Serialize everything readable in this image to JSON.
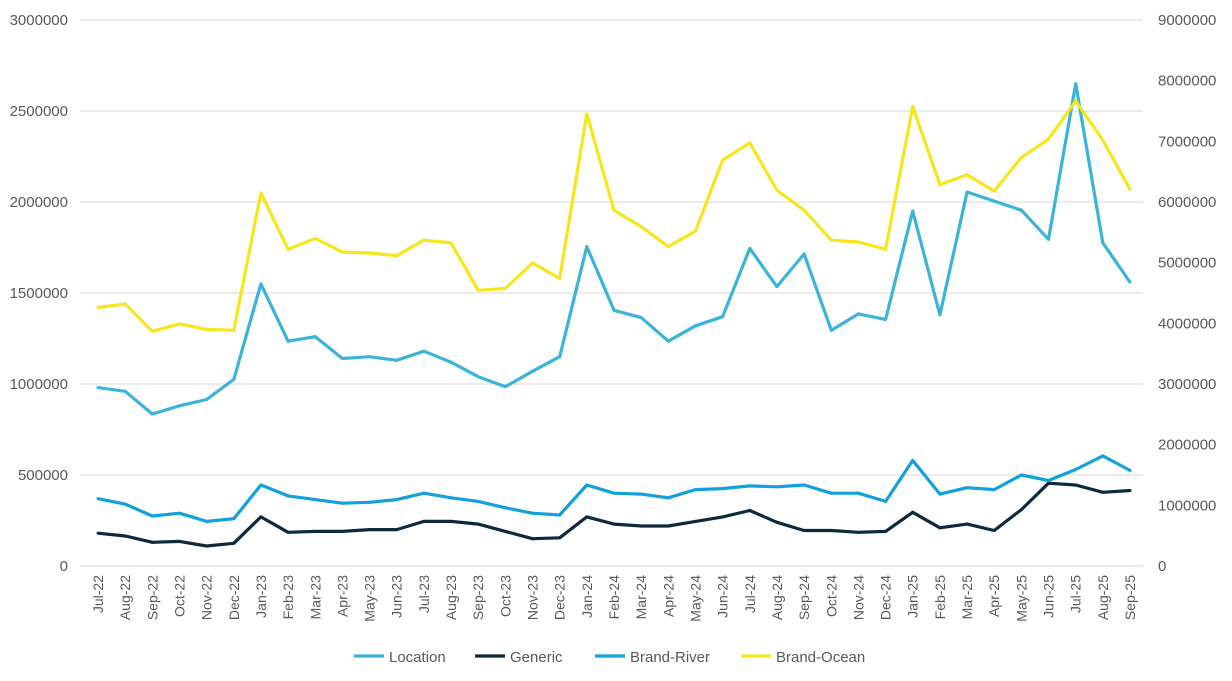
{
  "chart_data": {
    "type": "line",
    "title": "",
    "xlabel": "",
    "ylabel": "",
    "y2label": "",
    "ylim": [
      0,
      3000000
    ],
    "yticks": [
      "0",
      "500000",
      "1000000",
      "1500000",
      "2000000",
      "2500000",
      "3000000"
    ],
    "y2lim": [
      0,
      9000000
    ],
    "y2ticks": [
      "0",
      "1000000",
      "2000000",
      "3000000",
      "4000000",
      "5000000",
      "6000000",
      "7000000",
      "8000000",
      "9000000"
    ],
    "grid": true,
    "legend_position": "bottom",
    "categories": [
      "Jul-22",
      "Aug-22",
      "Sep-22",
      "Oct-22",
      "Nov-22",
      "Dec-22",
      "Jan-23",
      "Feb-23",
      "Mar-23",
      "Apr-23",
      "May-23",
      "Jun-23",
      "Jul-23",
      "Aug-23",
      "Sep-23",
      "Oct-23",
      "Nov-23",
      "Dec-23",
      "Jan-24",
      "Feb-24",
      "Mar-24",
      "Apr-24",
      "May-24",
      "Jun-24",
      "Jul-24",
      "Aug-24",
      "Sep-24",
      "Oct-24",
      "Nov-24",
      "Dec-24",
      "Jan-25",
      "Feb-25",
      "Mar-25",
      "Apr-25",
      "May-25",
      "Jun-25",
      "Jul-25",
      "Aug-25",
      "Sep-25"
    ],
    "series": [
      {
        "name": "Location",
        "axis": "left",
        "color": "#3BB3DA",
        "values": [
          980000,
          960000,
          835000,
          880000,
          915000,
          1025000,
          1550000,
          1235000,
          1260000,
          1140000,
          1150000,
          1130000,
          1180000,
          1120000,
          1040000,
          985000,
          1070000,
          1150000,
          1755000,
          1405000,
          1365000,
          1235000,
          1320000,
          1370000,
          1745000,
          1535000,
          1715000,
          1295000,
          1385000,
          1355000,
          1950000,
          1380000,
          2055000,
          2005000,
          1955000,
          1795000,
          2650000,
          1775000,
          1560000
        ]
      },
      {
        "name": "Generic",
        "axis": "left",
        "color": "#0C2A3C",
        "values": [
          180000,
          165000,
          130000,
          135000,
          110000,
          125000,
          270000,
          185000,
          190000,
          190000,
          200000,
          200000,
          245000,
          245000,
          230000,
          190000,
          150000,
          155000,
          270000,
          230000,
          220000,
          220000,
          245000,
          270000,
          305000,
          240000,
          195000,
          195000,
          185000,
          190000,
          295000,
          210000,
          230000,
          195000,
          310000,
          455000,
          445000,
          405000,
          415000
        ]
      },
      {
        "name": "Brand-River",
        "axis": "left",
        "color": "#12A1DA",
        "values": [
          370000,
          340000,
          275000,
          290000,
          245000,
          260000,
          445000,
          385000,
          365000,
          345000,
          350000,
          365000,
          400000,
          375000,
          355000,
          320000,
          290000,
          280000,
          445000,
          400000,
          395000,
          375000,
          420000,
          425000,
          440000,
          435000,
          445000,
          400000,
          400000,
          355000,
          580000,
          395000,
          430000,
          420000,
          500000,
          470000,
          530000,
          605000,
          525000
        ]
      },
      {
        "name": "Brand-Ocean",
        "axis": "right",
        "color": "#F7E61C",
        "values": [
          4260000,
          4320000,
          3870000,
          3990000,
          3900000,
          3885000,
          6150000,
          5220000,
          5400000,
          5175000,
          5160000,
          5115000,
          5370000,
          5325000,
          4545000,
          4575000,
          4995000,
          4740000,
          7455000,
          5865000,
          5595000,
          5265000,
          5520000,
          6690000,
          6975000,
          6195000,
          5865000,
          5370000,
          5340000,
          5220000,
          7575000,
          6285000,
          6450000,
          6180000,
          6735000,
          7035000,
          7665000,
          7020000,
          6210000
        ]
      }
    ]
  }
}
